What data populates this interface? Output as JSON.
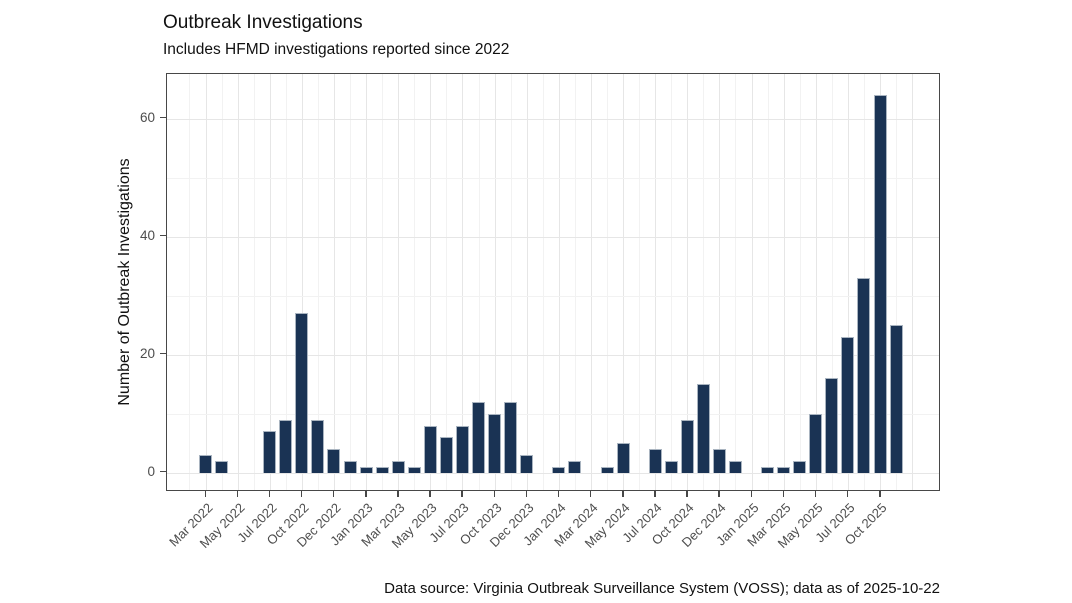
{
  "header": {
    "title": "Outbreak Investigations",
    "subtitle": "Includes HFMD investigations reported since 2022"
  },
  "caption": "Data source: Virginia Outbreak Surveillance System (VOSS); data as of 2025-10-22",
  "chart_data": {
    "type": "bar",
    "title": "Outbreak Investigations",
    "subtitle": "Includes HFMD investigations reported since 2022",
    "xlabel": "",
    "ylabel": "Number of Outbreak Investigations",
    "yticks": [
      0,
      20,
      40,
      60
    ],
    "ylim": [
      0,
      67
    ],
    "grid": true,
    "legend": "none",
    "n_bars": 44,
    "values": [
      3,
      2,
      0,
      0,
      7,
      9,
      27,
      9,
      4,
      2,
      1,
      1,
      2,
      1,
      8,
      6,
      8,
      12,
      10,
      12,
      3,
      0,
      1,
      2,
      0,
      1,
      5,
      0,
      4,
      2,
      9,
      15,
      4,
      2,
      0,
      1,
      1,
      2,
      10,
      16,
      23,
      33,
      64,
      25
    ],
    "x_tick_labels": [
      "Mar 2022",
      "May 2022",
      "Jul 2022",
      "Oct 2022",
      "Dec 2022",
      "Jan 2023",
      "Mar 2023",
      "May 2023",
      "Jul 2023",
      "Oct 2023",
      "Dec 2023",
      "Jan 2024",
      "Mar 2024",
      "May 2024",
      "Jul 2024",
      "Oct 2024",
      "Dec 2024",
      "Jan 2025",
      "Mar 2025",
      "May 2025",
      "Jul 2025",
      "Oct 2025"
    ],
    "x_tick_slots": [
      0,
      2,
      4,
      6,
      8,
      10,
      12,
      14,
      16,
      18,
      20,
      22,
      24,
      26,
      28,
      30,
      32,
      34,
      36,
      38,
      40,
      42
    ],
    "colors": {
      "bar_fill": "#1a3354",
      "bar_border": "#a9b4c0",
      "grid_major": "#e6e6e6",
      "grid_minor": "#f2f2f2",
      "axis_text": "#4d4d4d",
      "panel_border": "#474747",
      "text": "#111111"
    }
  }
}
